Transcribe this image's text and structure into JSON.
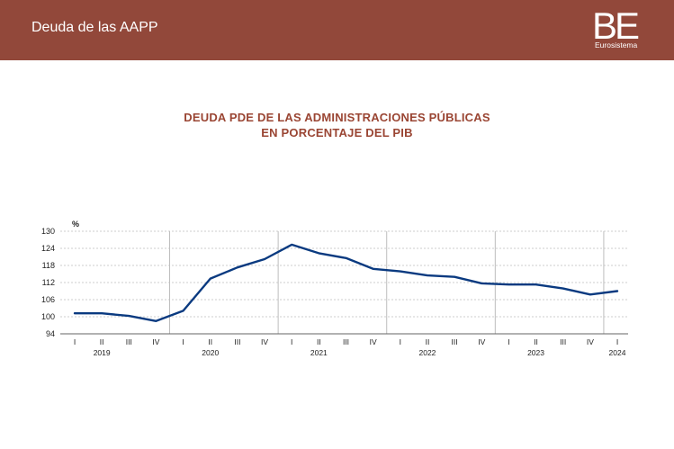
{
  "header": {
    "title": "Deuda de las AAPP",
    "logo_text": "BE",
    "logo_subtitle": "Eurosistema"
  },
  "colors": {
    "header_bg": "#92483a",
    "title": "#9a4533",
    "series_line": "#0a3a80",
    "grid": "#bdbdbd",
    "year_separator": "#bdbdbd"
  },
  "chart_data": {
    "type": "line",
    "title_line1": "DEUDA PDE DE LAS ADMINISTRACIONES PÚBLICAS",
    "title_line2": "EN PORCENTAJE DEL PIB",
    "unit_label": "%",
    "ylim": [
      94,
      130
    ],
    "yticks": [
      94,
      100,
      106,
      112,
      118,
      124,
      130
    ],
    "grid": "horizontal dashed",
    "x": [
      "2019-I",
      "2019-II",
      "2019-III",
      "2019-IV",
      "2020-I",
      "2020-II",
      "2020-III",
      "2020-IV",
      "2021-I",
      "2021-II",
      "2021-III",
      "2021-IV",
      "2022-I",
      "2022-II",
      "2022-III",
      "2022-IV",
      "2023-I",
      "2023-II",
      "2023-III",
      "2023-IV",
      "2024-I"
    ],
    "quarter_labels": [
      "I",
      "II",
      "III",
      "IV",
      "I",
      "II",
      "III",
      "IV",
      "I",
      "II",
      "III",
      "IV",
      "I",
      "II",
      "III",
      "IV",
      "I",
      "II",
      "III",
      "IV",
      "I"
    ],
    "year_labels": [
      {
        "year": "2019",
        "center_index": 1
      },
      {
        "year": "2020",
        "center_index": 5
      },
      {
        "year": "2021",
        "center_index": 9
      },
      {
        "year": "2022",
        "center_index": 13
      },
      {
        "year": "2023",
        "center_index": 17
      },
      {
        "year": "2024",
        "center_index": 20
      }
    ],
    "year_starts": [
      4,
      8,
      12,
      16,
      20
    ],
    "series": [
      {
        "values": [
          101.2,
          101.2,
          100.3,
          98.5,
          102.1,
          113.4,
          117.3,
          120.2,
          125.3,
          122.3,
          120.6,
          116.8,
          115.9,
          114.5,
          114.0,
          111.7,
          111.3,
          111.3,
          109.9,
          107.8,
          109.0
        ]
      }
    ]
  }
}
